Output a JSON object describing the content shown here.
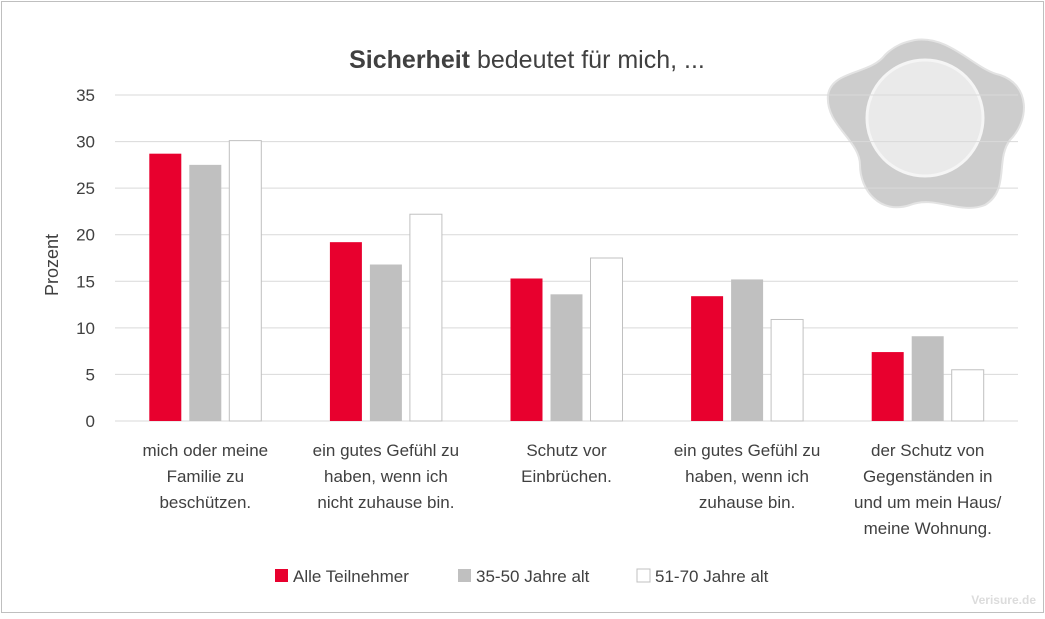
{
  "chart_data": {
    "type": "bar",
    "title": {
      "bold": "Sicherheit",
      "text": "bedeutet für mich, ..."
    },
    "ylabel": "Prozent",
    "categories": [
      [
        "mich oder meine",
        "Familie zu",
        "beschützen."
      ],
      [
        "ein gutes Gefühl zu",
        "haben, wenn ich",
        "nicht zuhause bin."
      ],
      [
        "Schutz vor",
        "Einbrüchen."
      ],
      [
        "ein gutes Gefühl zu",
        "haben, wenn ich",
        "zuhause bin."
      ],
      [
        "der Schutz von",
        "Gegenständen in",
        "und um mein Haus/",
        "meine Wohnung."
      ]
    ],
    "series": [
      {
        "name": "Alle Teilnehmer",
        "color": "#e8002e",
        "values": [
          28.7,
          19.2,
          15.3,
          13.4,
          7.4
        ]
      },
      {
        "name": "35-50 Jahre alt",
        "color": "#c0c0c0",
        "values": [
          27.5,
          16.8,
          13.6,
          15.2,
          9.1
        ]
      },
      {
        "name": "51-70 Jahre alt",
        "color": "#ffffff",
        "values": [
          30.1,
          22.2,
          17.5,
          10.9,
          5.5
        ]
      }
    ],
    "ylim": [
      0,
      35
    ],
    "yticks": [
      0,
      5,
      10,
      15,
      20,
      25,
      30,
      35
    ],
    "grid": true,
    "legend": "bottom",
    "watermark": "Verisure.de"
  }
}
